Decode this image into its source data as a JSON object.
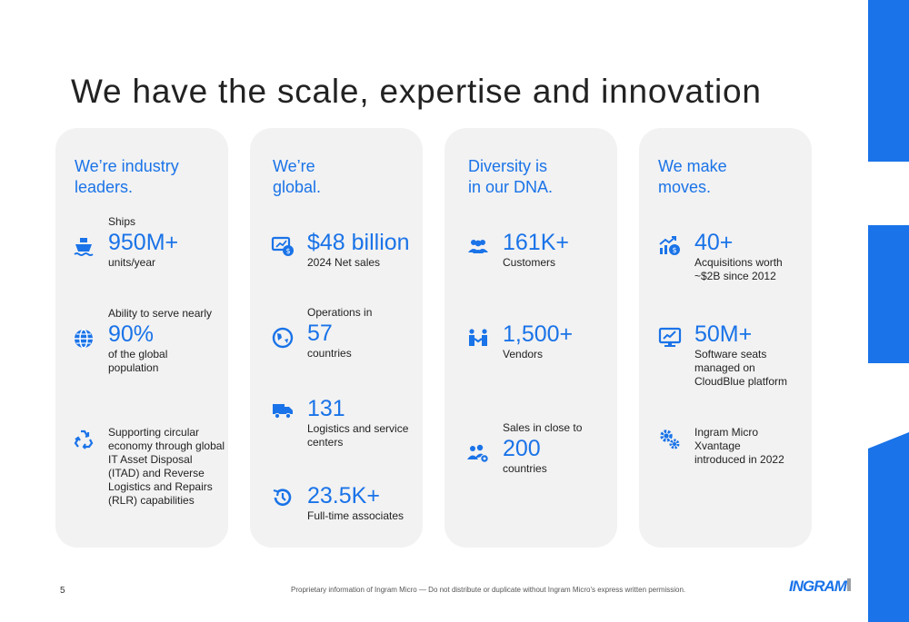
{
  "title": "We have the scale, expertise and innovation",
  "colors": {
    "accent": "#1a73e8",
    "card": "#f2f2f2",
    "text": "#222222"
  },
  "cards": [
    {
      "heading": "We’re industry\nleaders.",
      "items": [
        {
          "icon": "ship-icon",
          "pre": "Ships",
          "value": "950M+",
          "post": "units/year"
        },
        {
          "icon": "globe-icon",
          "pre": "Ability to serve nearly",
          "value": "90%",
          "post": "of the global\npopulation"
        },
        {
          "icon": "recycle-icon",
          "pre": "",
          "value": "",
          "post": "Supporting circular\neconomy through global\nIT Asset Disposal\n(ITAD) and Reverse\nLogistics and Repairs\n(RLR) capabilities"
        }
      ]
    },
    {
      "heading": "We’re\nglobal.",
      "items": [
        {
          "icon": "monitor-dollar-icon",
          "pre": "",
          "value": "$48 billion",
          "post": "2024 Net sales"
        },
        {
          "icon": "globe-pin-icon",
          "pre": "Operations in",
          "value": "57",
          "post": "countries"
        },
        {
          "icon": "truck-icon",
          "pre": "",
          "value": "131",
          "post": "Logistics and service\ncenters"
        },
        {
          "icon": "history-icon",
          "pre": "",
          "value": "23.5K+",
          "post": "Full-time associates"
        }
      ]
    },
    {
      "heading": "Diversity is\nin our DNA.",
      "items": [
        {
          "icon": "people-icon",
          "pre": "",
          "value": "161K+",
          "post": "Customers"
        },
        {
          "icon": "handshake-icon",
          "pre": "",
          "value": "1,500+",
          "post": "Vendors"
        },
        {
          "icon": "people-gear-icon",
          "pre": "Sales in close to",
          "value": "200",
          "post": "countries"
        }
      ]
    },
    {
      "heading": "We make\nmoves.",
      "items": [
        {
          "icon": "chart-dollar-icon",
          "pre": "",
          "value": "40+",
          "post": "Acquisitions worth\n~$2B since 2012"
        },
        {
          "icon": "monitor-chart-icon",
          "pre": "",
          "value": "50M+",
          "post": "Software seats\nmanaged on\nCloudBlue platform"
        },
        {
          "icon": "gears-icon",
          "pre": "",
          "value": "",
          "post": "Ingram Micro\nXvantage\nintroduced in 2022"
        }
      ]
    }
  ],
  "footer": {
    "page_number": "5",
    "notice": "Proprietary information of Ingram Micro — Do not distribute or duplicate without Ingram Micro's express written permission.",
    "logo": "INGRAM"
  }
}
